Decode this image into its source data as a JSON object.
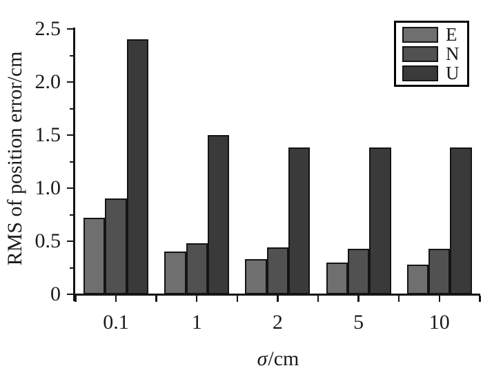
{
  "figure": {
    "background": "#ffffff",
    "text_color": "#1a1a1a",
    "axis_color": "#141414"
  },
  "chart_data": {
    "type": "bar",
    "title": "",
    "categories": [
      "0.1",
      "1",
      "2",
      "5",
      "10"
    ],
    "series": [
      {
        "name": "E",
        "color": "#6f6f6f",
        "values": [
          0.72,
          0.4,
          0.33,
          0.3,
          0.28
        ]
      },
      {
        "name": "N",
        "color": "#515151",
        "values": [
          0.9,
          0.48,
          0.44,
          0.43,
          0.43
        ]
      },
      {
        "name": "U",
        "color": "#3a3a3a",
        "values": [
          2.4,
          1.5,
          1.38,
          1.38,
          1.38
        ]
      }
    ],
    "xlabel_symbol": "σ",
    "xlabel_unit": "/cm",
    "ylabel": "RMS of position error/cm",
    "ylim": [
      0,
      2.5
    ],
    "ytick_labels": [
      "0",
      "0.5",
      "1.0",
      "1.5",
      "2.0",
      "2.5"
    ],
    "ytick_step": 0.5,
    "y_minor_tick_step": 0.25,
    "grid": false,
    "legend_position": "top-right",
    "legend_entries": [
      "E",
      "N",
      "U"
    ]
  }
}
